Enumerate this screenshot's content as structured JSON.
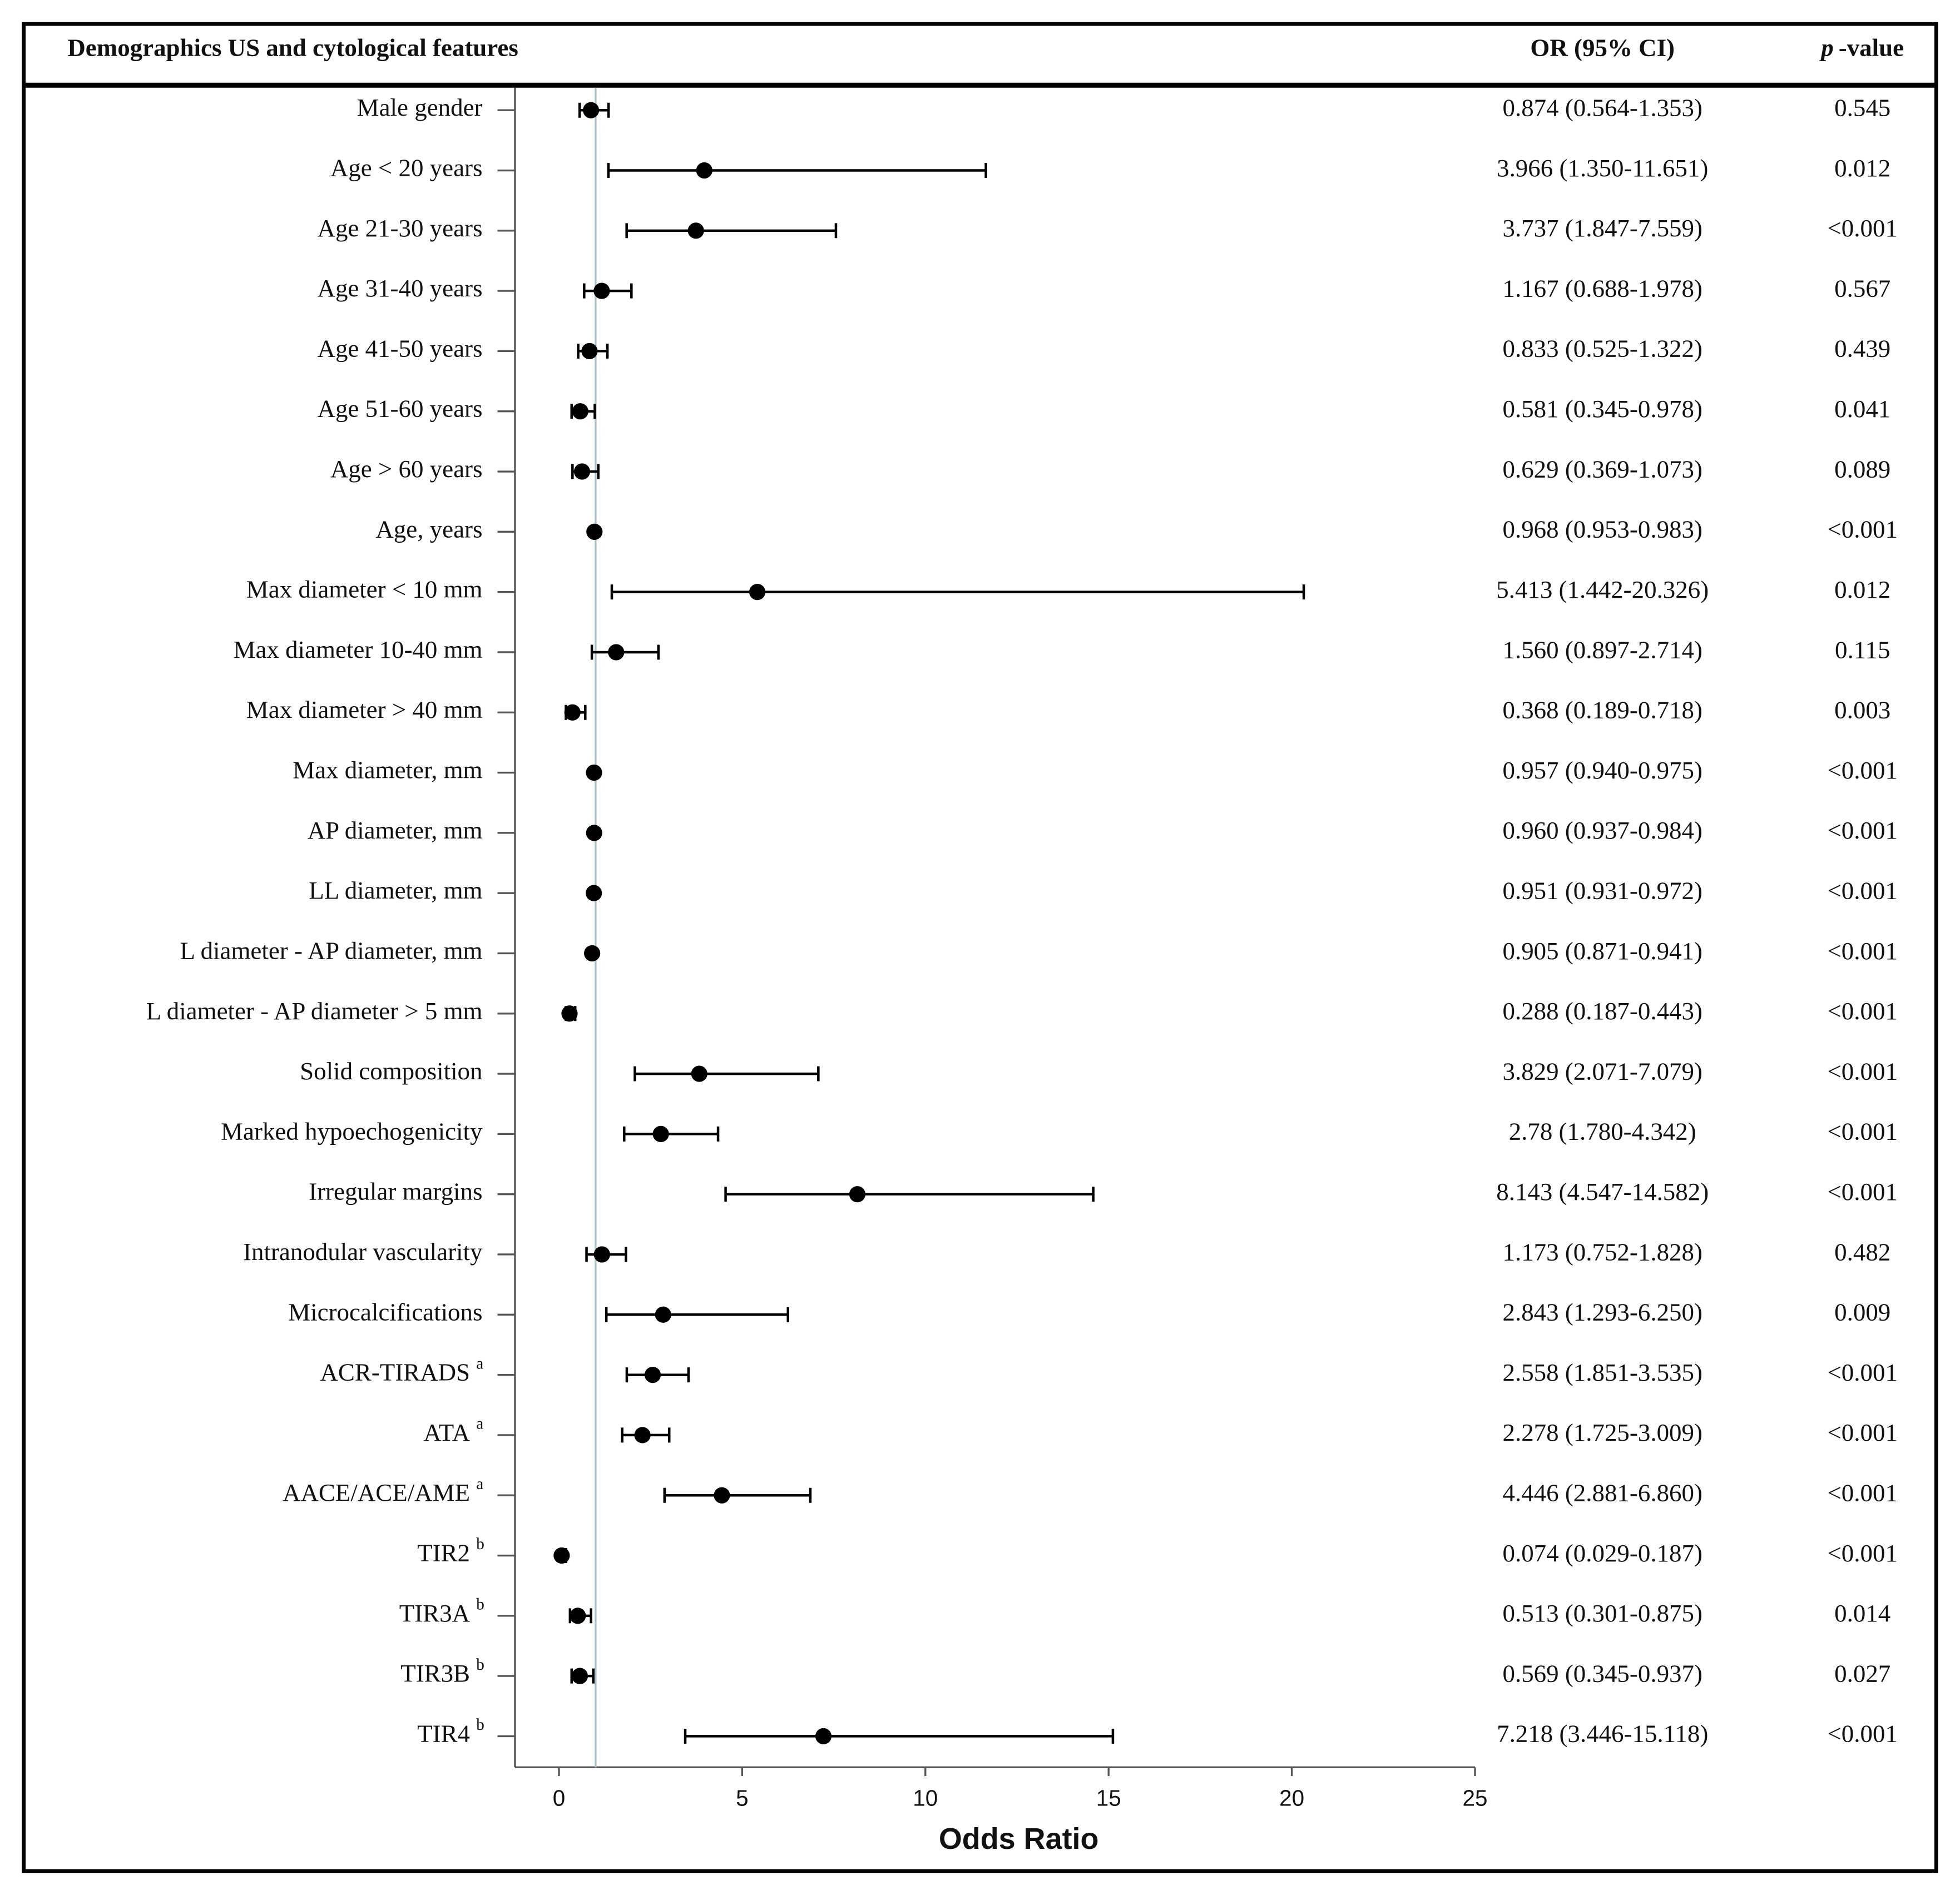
{
  "chart_data": {
    "type": "forest",
    "header": {
      "label": "Demographics US and cytological features",
      "or": "OR (95% CI)",
      "p_italic": "p",
      "p_rest": "-value"
    },
    "categories": [
      "Male gender",
      "Age < 20 years",
      "Age 21-30 years",
      "Age 31-40 years",
      "Age 41-50 years",
      "Age 51-60 years",
      "Age > 60 years",
      "Age, years",
      "Max diameter < 10 mm",
      "Max diameter 10-40 mm",
      "Max diameter > 40 mm",
      "Max diameter, mm",
      "AP diameter, mm",
      "LL diameter, mm",
      "L diameter - AP diameter, mm",
      "L diameter - AP diameter > 5 mm",
      "Solid composition",
      "Marked hypoechogenicity",
      "Irregular margins",
      "Intranodular vascularity",
      "Microcalcifications",
      "ACR-TIRADS",
      "ATA",
      "AACE/ACE/AME",
      "TIR2",
      "TIR3A",
      "TIR3B",
      "TIR4"
    ],
    "superscripts": [
      null,
      null,
      null,
      null,
      null,
      null,
      null,
      null,
      null,
      null,
      null,
      null,
      null,
      null,
      null,
      null,
      null,
      null,
      null,
      null,
      null,
      "a",
      "a",
      "a",
      "b",
      "b",
      "b",
      "b"
    ],
    "values": [
      0.874,
      3.966,
      3.737,
      1.167,
      0.833,
      0.581,
      0.629,
      0.968,
      5.413,
      1.56,
      0.368,
      0.957,
      0.96,
      0.951,
      0.905,
      0.288,
      3.829,
      2.78,
      8.143,
      1.173,
      2.843,
      2.558,
      2.278,
      4.446,
      0.074,
      0.513,
      0.569,
      7.218
    ],
    "ci_low": [
      0.564,
      1.35,
      1.847,
      0.688,
      0.525,
      0.345,
      0.369,
      0.953,
      1.442,
      0.897,
      0.189,
      0.94,
      0.937,
      0.931,
      0.871,
      0.187,
      2.071,
      1.78,
      4.547,
      0.752,
      1.293,
      1.851,
      1.725,
      2.881,
      0.029,
      0.301,
      0.345,
      3.446
    ],
    "ci_high": [
      1.353,
      11.651,
      7.559,
      1.978,
      1.322,
      0.978,
      1.073,
      0.983,
      20.326,
      2.714,
      0.718,
      0.975,
      0.984,
      0.972,
      0.941,
      0.443,
      7.079,
      4.342,
      14.582,
      1.828,
      6.25,
      3.535,
      3.009,
      6.86,
      0.187,
      0.875,
      0.937,
      15.118
    ],
    "value_labels": [
      "0.874 (0.564-1.353)",
      "3.966 (1.350-11.651)",
      "3.737 (1.847-7.559)",
      "1.167 (0.688-1.978)",
      "0.833 (0.525-1.322)",
      "0.581 (0.345-0.978)",
      "0.629 (0.369-1.073)",
      "0.968 (0.953-0.983)",
      "5.413 (1.442-20.326)",
      "1.560 (0.897-2.714)",
      "0.368 (0.189-0.718)",
      "0.957 (0.940-0.975)",
      "0.960 (0.937-0.984)",
      "0.951 (0.931-0.972)",
      "0.905 (0.871-0.941)",
      "0.288 (0.187-0.443)",
      "3.829 (2.071-7.079)",
      "2.78 (1.780-4.342)",
      "8.143 (4.547-14.582)",
      "1.173 (0.752-1.828)",
      "2.843 (1.293-6.250)",
      "2.558 (1.851-3.535)",
      "2.278 (1.725-3.009)",
      "4.446 (2.881-6.860)",
      "0.074 (0.029-0.187)",
      "0.513 (0.301-0.875)",
      "0.569 (0.345-0.937)",
      "7.218 (3.446-15.118)"
    ],
    "p_values": [
      "0.545",
      "0.012",
      "<0.001",
      "0.567",
      "0.439",
      "0.041",
      "0.089",
      "<0.001",
      "0.012",
      "0.115",
      "0.003",
      "<0.001",
      "<0.001",
      "<0.001",
      "<0.001",
      "<0.001",
      "<0.001",
      "<0.001",
      "<0.001",
      "0.482",
      "0.009",
      "<0.001",
      "<0.001",
      "<0.001",
      "<0.001",
      "0.014",
      "0.027",
      "<0.001"
    ],
    "xlabel": "Odds Ratio",
    "xlim": [
      -1.2,
      25
    ],
    "xticks": [
      0,
      5,
      10,
      15,
      20,
      25
    ],
    "refline": 1,
    "color": "#000000",
    "refline_color": "#a9c4c9"
  }
}
